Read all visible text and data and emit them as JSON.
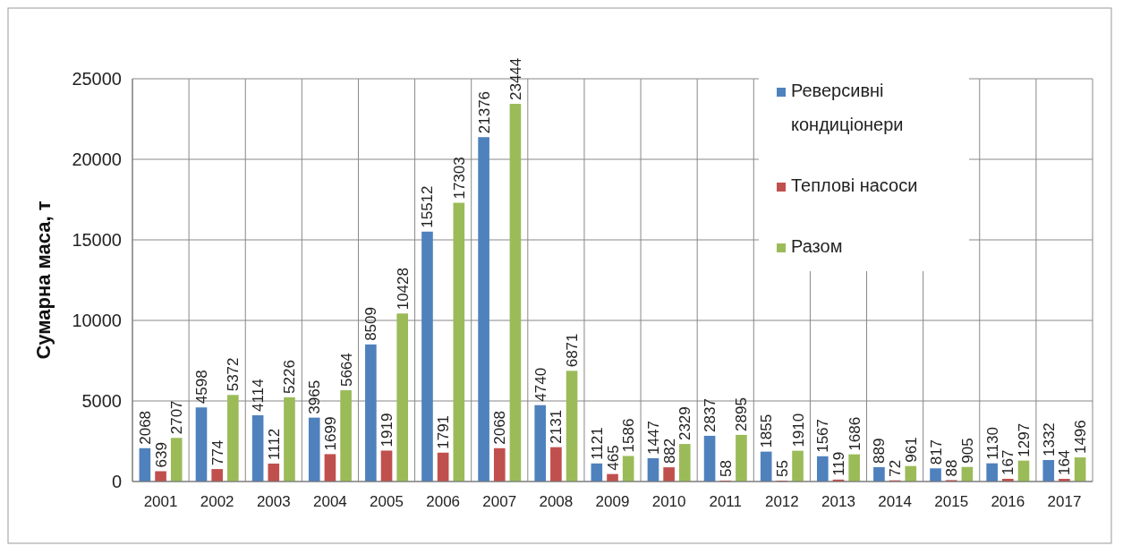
{
  "chart_data": {
    "type": "bar",
    "ylabel": "Сумарна маса, т",
    "categories": [
      "2001",
      "2002",
      "2003",
      "2004",
      "2005",
      "2006",
      "2007",
      "2008",
      "2009",
      "2010",
      "2011",
      "2012",
      "2013",
      "2014",
      "2015",
      "2016",
      "2017"
    ],
    "series": [
      {
        "name": "Реверсивні кондиціонери",
        "color": "#4f81bd",
        "values": [
          2068,
          4598,
          4114,
          3965,
          8509,
          15512,
          21376,
          4740,
          1121,
          1447,
          2837,
          1855,
          1567,
          889,
          817,
          1130,
          1332
        ]
      },
      {
        "name": "Теплові насоси",
        "color": "#c0504d",
        "values": [
          639,
          774,
          1112,
          1699,
          1919,
          1791,
          2068,
          2131,
          465,
          882,
          58,
          55,
          119,
          72,
          88,
          167,
          164
        ]
      },
      {
        "name": "Разом",
        "color": "#9bbb59",
        "values": [
          2707,
          5372,
          5226,
          5664,
          10428,
          17303,
          23444,
          6871,
          1586,
          2329,
          2895,
          1910,
          1686,
          961,
          905,
          1297,
          1496
        ]
      }
    ],
    "ylim": [
      0,
      25000
    ],
    "yticks": [
      0,
      5000,
      10000,
      15000,
      20000,
      25000
    ],
    "grid": true,
    "legend": "top right",
    "data_labels": true
  }
}
